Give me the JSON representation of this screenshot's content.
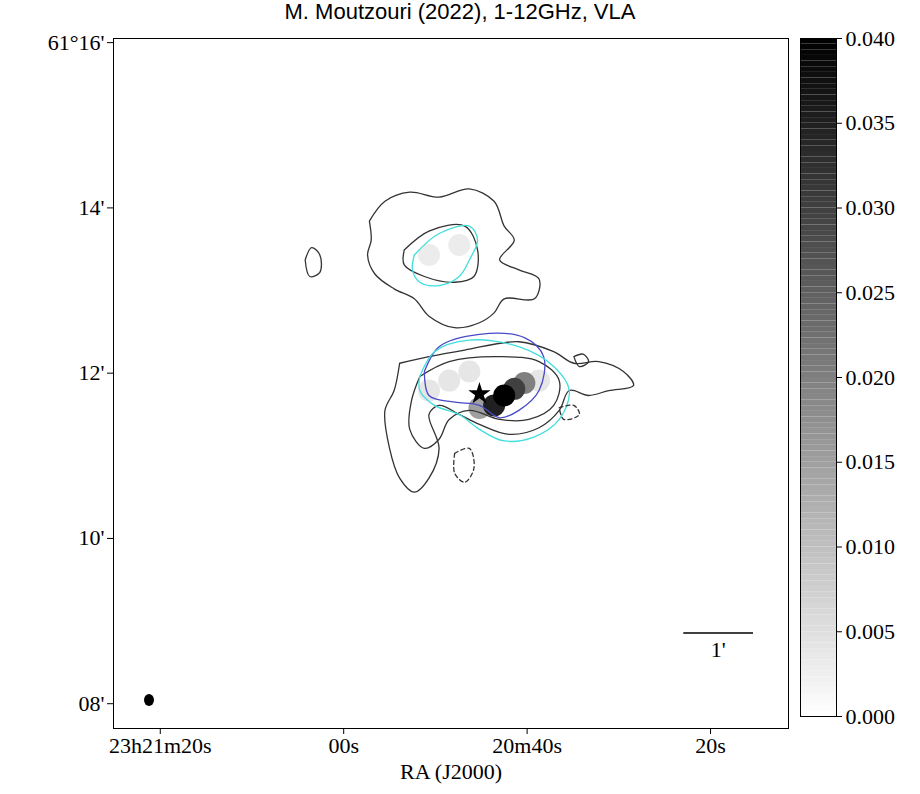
{
  "chart_data": {
    "type": "contour_map",
    "title": "M. Moutzouri (2022), 1-12GHz, VLA",
    "x_label": "RA (J2000)",
    "xlim": [
      85.1,
      11.5
    ],
    "xticks": [
      {
        "value": 80,
        "label": "23h21m20s"
      },
      {
        "value": 60,
        "label": "00s"
      },
      {
        "value": 40,
        "label": "20m40s"
      },
      {
        "value": 20,
        "label": "20s"
      }
    ],
    "ylim": [
      7.7,
      16.05
    ],
    "yticks": [
      {
        "value": 16,
        "label": "61°16'"
      },
      {
        "value": 14,
        "label": "14'"
      },
      {
        "value": 12,
        "label": "12'"
      },
      {
        "value": 10,
        "label": "10'"
      },
      {
        "value": 8,
        "label": "08'"
      }
    ],
    "series": [
      {
        "color": "#333333",
        "line_style": "solid",
        "values": [
          [
            57.2,
            13.84
          ],
          [
            55.5,
            14.08
          ],
          [
            52.8,
            14.19
          ],
          [
            49.6,
            14.13
          ],
          [
            46.3,
            14.23
          ],
          [
            43.6,
            14.08
          ],
          [
            42.5,
            13.78
          ],
          [
            41.4,
            13.61
          ],
          [
            43.0,
            13.37
          ],
          [
            40.9,
            13.25
          ],
          [
            38.7,
            13.14
          ],
          [
            39.2,
            12.9
          ],
          [
            42.5,
            12.9
          ],
          [
            43.6,
            12.73
          ],
          [
            45.2,
            12.61
          ],
          [
            47.9,
            12.55
          ],
          [
            50.7,
            12.69
          ],
          [
            52.3,
            12.9
          ],
          [
            54.5,
            13.02
          ],
          [
            56.6,
            13.2
          ],
          [
            57.4,
            13.43
          ],
          [
            57.0,
            13.61
          ],
          [
            57.2,
            13.84
          ]
        ]
      },
      {
        "color": "#333333",
        "line_style": "solid",
        "values": [
          [
            53.4,
            13.49
          ],
          [
            50.7,
            13.72
          ],
          [
            46.8,
            13.78
          ],
          [
            45.4,
            13.49
          ],
          [
            45.8,
            13.17
          ],
          [
            47.9,
            13.1
          ],
          [
            51.2,
            13.17
          ],
          [
            53.4,
            13.31
          ],
          [
            53.4,
            13.49
          ]
        ]
      },
      {
        "color": "#40dede",
        "line_style": "solid",
        "values": [
          [
            52.3,
            13.43
          ],
          [
            49.6,
            13.69
          ],
          [
            46.3,
            13.78
          ],
          [
            45.4,
            13.61
          ],
          [
            46.3,
            13.37
          ],
          [
            47.4,
            13.17
          ],
          [
            49.6,
            13.06
          ],
          [
            51.7,
            13.1
          ],
          [
            52.5,
            13.25
          ],
          [
            52.3,
            13.43
          ]
        ]
      },
      {
        "color": "#333333",
        "line_style": "solid",
        "values": [
          [
            64.2,
            13.37
          ],
          [
            63.5,
            13.52
          ],
          [
            62.6,
            13.43
          ],
          [
            62.6,
            13.22
          ],
          [
            63.7,
            13.17
          ],
          [
            64.2,
            13.37
          ]
        ]
      },
      {
        "color": "#333333",
        "line_style": "solid",
        "values": [
          [
            53.9,
            12.12
          ],
          [
            50.7,
            12.2
          ],
          [
            46.8,
            12.28
          ],
          [
            40.9,
            12.38
          ],
          [
            37.1,
            12.26
          ],
          [
            34.9,
            12.12
          ],
          [
            32.2,
            12.14
          ],
          [
            29.5,
            12.02
          ],
          [
            28.4,
            11.85
          ],
          [
            31.1,
            11.79
          ],
          [
            33.3,
            11.73
          ],
          [
            35.4,
            11.79
          ],
          [
            36.5,
            11.55
          ],
          [
            38.7,
            11.34
          ],
          [
            42.0,
            11.26
          ],
          [
            45.2,
            11.38
          ],
          [
            47.4,
            11.5
          ],
          [
            49.6,
            11.61
          ],
          [
            50.7,
            11.5
          ],
          [
            49.6,
            11.09
          ],
          [
            50.7,
            10.73
          ],
          [
            52.3,
            10.56
          ],
          [
            53.9,
            10.73
          ],
          [
            55.0,
            11.09
          ],
          [
            55.5,
            11.55
          ],
          [
            54.5,
            11.79
          ],
          [
            53.9,
            12.12
          ]
        ]
      },
      {
        "color": "#333333",
        "line_style": "solid",
        "values": [
          [
            51.7,
            11.96
          ],
          [
            48.5,
            12.14
          ],
          [
            43.0,
            12.2
          ],
          [
            38.7,
            12.14
          ],
          [
            36.5,
            11.91
          ],
          [
            37.1,
            11.61
          ],
          [
            39.8,
            11.44
          ],
          [
            43.0,
            11.44
          ],
          [
            46.3,
            11.55
          ],
          [
            48.5,
            11.44
          ],
          [
            49.6,
            11.2
          ],
          [
            51.2,
            11.09
          ],
          [
            52.8,
            11.32
          ],
          [
            52.6,
            11.67
          ],
          [
            51.7,
            11.96
          ]
        ]
      },
      {
        "color": "#4a4ac8",
        "line_style": "solid",
        "values": [
          [
            51.2,
            12.02
          ],
          [
            49.6,
            12.32
          ],
          [
            45.2,
            12.47
          ],
          [
            40.3,
            12.43
          ],
          [
            38.2,
            12.2
          ],
          [
            38.7,
            11.79
          ],
          [
            40.9,
            11.55
          ],
          [
            43.0,
            11.46
          ],
          [
            45.2,
            11.61
          ],
          [
            47.9,
            11.65
          ],
          [
            50.7,
            11.73
          ],
          [
            51.2,
            12.02
          ]
        ]
      },
      {
        "color": "#40dede",
        "line_style": "solid",
        "values": [
          [
            51.7,
            11.96
          ],
          [
            50.1,
            12.26
          ],
          [
            46.3,
            12.4
          ],
          [
            40.9,
            12.32
          ],
          [
            37.1,
            12.08
          ],
          [
            35.4,
            11.79
          ],
          [
            36.5,
            11.44
          ],
          [
            39.2,
            11.23
          ],
          [
            42.5,
            11.18
          ],
          [
            45.2,
            11.32
          ],
          [
            47.4,
            11.5
          ],
          [
            50.1,
            11.61
          ],
          [
            51.7,
            11.79
          ],
          [
            51.7,
            11.96
          ]
        ]
      },
      {
        "color": "#333333",
        "line_style": "solid",
        "values": [
          [
            34.9,
            12.2
          ],
          [
            33.9,
            12.23
          ],
          [
            33.3,
            12.14
          ],
          [
            34.3,
            12.08
          ],
          [
            34.9,
            12.2
          ]
        ]
      },
      {
        "color": "#333333",
        "line_style": "dashed",
        "values": [
          [
            36.5,
            11.58
          ],
          [
            34.9,
            11.61
          ],
          [
            34.3,
            11.5
          ],
          [
            36.0,
            11.44
          ],
          [
            36.5,
            11.58
          ]
        ]
      },
      {
        "color": "#333333",
        "line_style": "dashed",
        "values": [
          [
            47.9,
            11.03
          ],
          [
            46.3,
            11.09
          ],
          [
            45.8,
            10.85
          ],
          [
            46.8,
            10.68
          ],
          [
            47.9,
            10.79
          ],
          [
            47.9,
            11.03
          ]
        ]
      }
    ],
    "intensity": [
      {
        "x": 50.7,
        "y": 13.43,
        "value": 0.003
      },
      {
        "x": 47.4,
        "y": 13.55,
        "value": 0.003
      },
      {
        "x": 48.5,
        "y": 11.91,
        "value": 0.004
      },
      {
        "x": 46.3,
        "y": 12.02,
        "value": 0.004
      },
      {
        "x": 50.7,
        "y": 11.79,
        "value": 0.004
      },
      {
        "x": 38.7,
        "y": 11.91,
        "value": 0.004
      },
      {
        "x": 45.2,
        "y": 11.58,
        "value": 0.015
      },
      {
        "x": 40.3,
        "y": 11.88,
        "value": 0.02
      },
      {
        "x": 41.4,
        "y": 11.81,
        "value": 0.03
      },
      {
        "x": 43.6,
        "y": 11.61,
        "value": 0.035
      },
      {
        "x": 42.5,
        "y": 11.73,
        "value": 0.04
      }
    ],
    "source_marker": {
      "x": 45.2,
      "y": 11.75,
      "marker": "star",
      "color": "#000000"
    },
    "scale_bar": {
      "label": "1'",
      "length": 7.6
    },
    "colorbar": {
      "lim": [
        0,
        0.04
      ],
      "ticks": [
        {
          "value": 0,
          "label": "0.000"
        },
        0.005,
        {
          "value": 0.01,
          "label": "0.010"
        },
        0.015,
        {
          "value": 0.02,
          "label": "0.020"
        },
        0.025,
        {
          "value": 0.03,
          "label": "0.030"
        },
        0.035,
        {
          "value": 0.04,
          "label": "0.040"
        }
      ],
      "colors": [
        "#ffffff",
        "#000000"
      ]
    }
  }
}
